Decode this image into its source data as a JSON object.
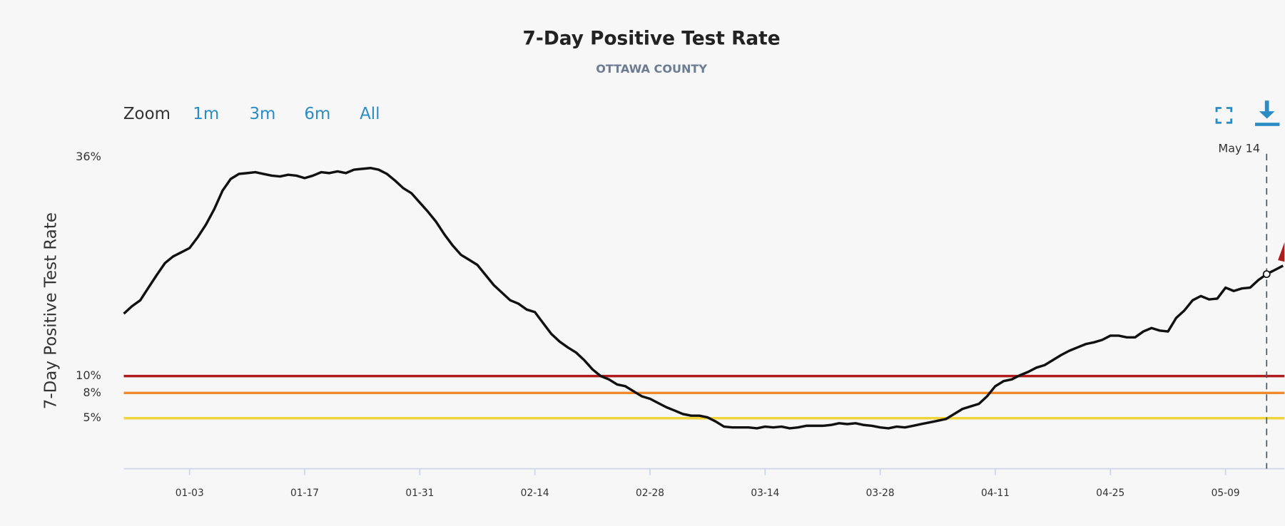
{
  "chart_data": {
    "type": "line",
    "title": "7-Day Positive Test Rate",
    "subtitle": "OTTAWA COUNTY",
    "y_axis_label": "7-Day Positive Test Rate",
    "zoom": {
      "label": "Zoom",
      "buttons": [
        "1m",
        "3m",
        "6m",
        "All"
      ]
    },
    "x": [
      "12-26",
      "12-27",
      "12-28",
      "12-29",
      "12-30",
      "12-31",
      "01-01",
      "01-02",
      "01-03",
      "01-04",
      "01-05",
      "01-06",
      "01-07",
      "01-08",
      "01-09",
      "01-10",
      "01-11",
      "01-12",
      "01-13",
      "01-14",
      "01-15",
      "01-16",
      "01-17",
      "01-18",
      "01-19",
      "01-20",
      "01-21",
      "01-22",
      "01-23",
      "01-24",
      "01-25",
      "01-26",
      "01-27",
      "01-28",
      "01-29",
      "01-30",
      "01-31",
      "02-01",
      "02-02",
      "02-03",
      "02-04",
      "02-05",
      "02-06",
      "02-07",
      "02-08",
      "02-09",
      "02-10",
      "02-11",
      "02-12",
      "02-13",
      "02-14",
      "02-15",
      "02-16",
      "02-17",
      "02-18",
      "02-19",
      "02-20",
      "02-21",
      "02-22",
      "02-23",
      "02-24",
      "02-25",
      "02-26",
      "02-27",
      "02-28",
      "03-01",
      "03-02",
      "03-03",
      "03-04",
      "03-05",
      "03-06",
      "03-07",
      "03-08",
      "03-09",
      "03-10",
      "03-11",
      "03-12",
      "03-13",
      "03-14",
      "03-15",
      "03-16",
      "03-17",
      "03-18",
      "03-19",
      "03-20",
      "03-21",
      "03-22",
      "03-23",
      "03-24",
      "03-25",
      "03-26",
      "03-27",
      "03-28",
      "03-29",
      "03-30",
      "03-31",
      "04-01",
      "04-02",
      "04-03",
      "04-04",
      "04-05",
      "04-06",
      "04-07",
      "04-08",
      "04-09",
      "04-10",
      "04-11",
      "04-12",
      "04-13",
      "04-14",
      "04-15",
      "04-16",
      "04-17",
      "04-18",
      "04-19",
      "04-20",
      "04-21",
      "04-22",
      "04-23",
      "04-24",
      "04-25",
      "04-26",
      "04-27",
      "04-28",
      "04-29",
      "04-30",
      "05-01",
      "05-02",
      "05-03",
      "05-04",
      "05-05",
      "05-06",
      "05-07",
      "05-08",
      "05-09",
      "05-10",
      "05-11",
      "05-12",
      "05-13",
      "05-14",
      "05-15",
      "05-16"
    ],
    "series": [
      {
        "color": "#111111",
        "values": [
          17.4,
          18.3,
          19.0,
          20.5,
          22.0,
          23.4,
          24.2,
          24.7,
          25.2,
          26.5,
          28.0,
          29.8,
          32.0,
          33.4,
          34.0,
          34.1,
          34.2,
          34.0,
          33.8,
          33.7,
          33.9,
          33.8,
          33.5,
          33.8,
          34.2,
          34.1,
          34.3,
          34.1,
          34.5,
          34.6,
          34.7,
          34.5,
          34.0,
          33.2,
          32.3,
          31.7,
          30.6,
          29.5,
          28.3,
          26.8,
          25.5,
          24.4,
          23.8,
          23.2,
          22.0,
          20.8,
          19.9,
          19.0,
          18.6,
          17.9,
          17.6,
          16.3,
          15.0,
          14.1,
          13.4,
          12.8,
          11.9,
          10.8,
          10.0,
          9.6,
          9.0,
          8.8,
          8.2,
          7.6,
          7.3,
          6.8,
          6.3,
          5.9,
          5.5,
          5.3,
          5.3,
          5.1,
          4.6,
          4.0,
          3.9,
          3.9,
          3.9,
          3.8,
          4.0,
          3.9,
          4.0,
          3.8,
          3.9,
          4.1,
          4.1,
          4.1,
          4.2,
          4.4,
          4.3,
          4.4,
          4.2,
          4.1,
          3.9,
          3.8,
          4.0,
          3.9,
          4.1,
          4.3,
          4.5,
          4.7,
          4.9,
          5.5,
          6.1,
          6.4,
          6.7,
          7.6,
          8.8,
          9.4,
          9.6,
          10.1,
          10.5,
          11.0,
          11.3,
          11.9,
          12.5,
          13.0,
          13.4,
          13.8,
          14.0,
          14.3,
          14.8,
          14.8,
          14.6,
          14.6,
          15.3,
          15.7,
          15.4,
          15.3,
          16.9,
          17.8,
          19.0,
          19.5,
          19.1,
          19.2,
          20.5,
          20.1,
          20.4,
          20.5,
          21.4,
          22.1,
          22.6,
          23.1
        ]
      }
    ],
    "xticks": [
      "01-03",
      "01-17",
      "01-31",
      "02-14",
      "02-28",
      "03-14",
      "03-28",
      "04-11",
      "04-25",
      "05-09"
    ],
    "ylim": [
      -1,
      36
    ],
    "yticks": [
      {
        "value": 5,
        "label": "5%"
      },
      {
        "value": 8,
        "label": "8%"
      },
      {
        "value": 10,
        "label": "10%"
      },
      {
        "value": 36,
        "label": "36%"
      }
    ],
    "plot_lines": [
      {
        "value": 10,
        "color": "#b01c1c"
      },
      {
        "value": 8,
        "color": "#f08a2c"
      },
      {
        "value": 5,
        "color": "#f0d43a"
      }
    ],
    "annotation": {
      "x": "05-14",
      "label": "May 14"
    }
  }
}
